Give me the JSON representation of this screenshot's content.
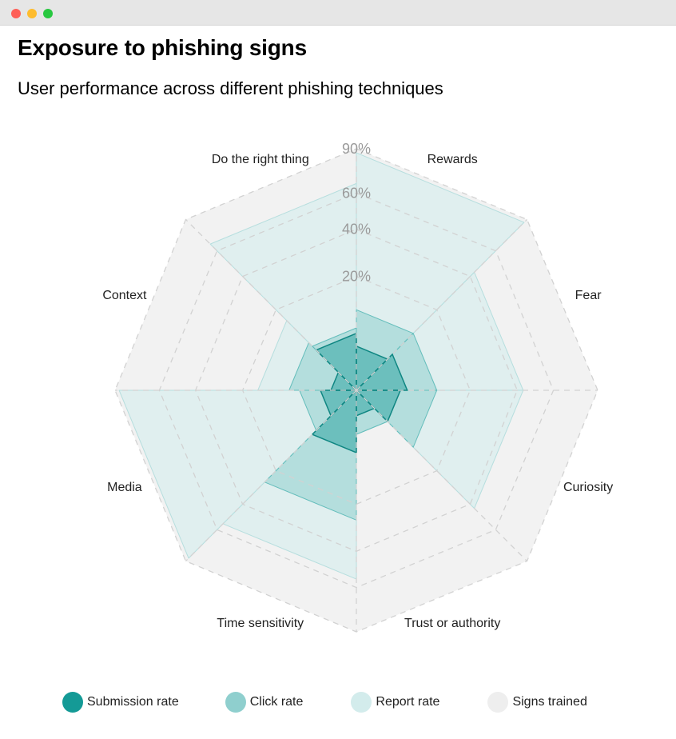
{
  "window": {
    "controls": [
      "close",
      "minimize",
      "maximize"
    ]
  },
  "header": {
    "title": "Exposure to phishing signs",
    "subtitle": "User performance across different phishing techniques"
  },
  "colors": {
    "submission": "#149a96",
    "click": "#8fcfce",
    "report": "#d3ecec",
    "trained": "#eeeeee",
    "grid": "#d2d2d2",
    "tick_text": "#9a9a9a"
  },
  "chart_data": {
    "type": "radar",
    "title": "Exposure to phishing signs",
    "subtitle": "User performance across different phishing techniques",
    "categories": [
      "Rewards",
      "Fear",
      "Curiosity",
      "Trust or authority",
      "Time sensitivity",
      "Media",
      "Context",
      "Do the right thing"
    ],
    "tick_labels": [
      "20%",
      "40%",
      "60%",
      "90%"
    ],
    "scale": "sqrt",
    "range": [
      0,
      90
    ],
    "series": [
      {
        "name": "Signs trained",
        "values": [
          90,
          90,
          90,
          90,
          90,
          90,
          90,
          90
        ]
      },
      {
        "name": "Report rate",
        "values": [
          87,
          43,
          43,
          3,
          55,
          87,
          15,
          66
        ]
      },
      {
        "name": "Click rate",
        "values": [
          10,
          10,
          10,
          3,
          26,
          5,
          7,
          6
        ]
      },
      {
        "name": "Submission rate",
        "values": [
          3,
          4,
          3,
          1,
          6,
          2,
          1,
          5
        ]
      }
    ],
    "legend_position": "bottom",
    "grid": true
  },
  "legend": [
    {
      "key": "submission",
      "label": "Submission rate"
    },
    {
      "key": "click",
      "label": "Click rate"
    },
    {
      "key": "report",
      "label": "Report rate"
    },
    {
      "key": "trained",
      "label": "Signs trained"
    }
  ]
}
